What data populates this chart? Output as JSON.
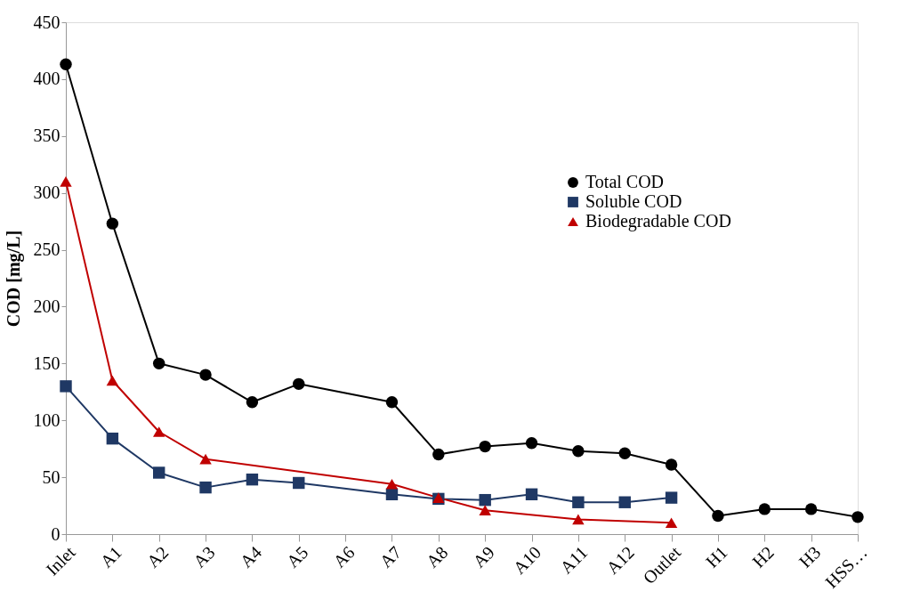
{
  "chart_data": {
    "type": "line",
    "ylabel": "COD [mg/L]",
    "categories": [
      "Inlet",
      "A1",
      "A2",
      "A3",
      "A4",
      "A5",
      "A6",
      "A7",
      "A8",
      "A9",
      "A10",
      "A11",
      "A12",
      "Outlet",
      "H1",
      "H2",
      "H3",
      "HSS…"
    ],
    "series": [
      {
        "name": "Total COD",
        "color": "#000000",
        "marker": "circle",
        "values": [
          413,
          273,
          150,
          140,
          116,
          132,
          null,
          116,
          70,
          77,
          80,
          73,
          71,
          61,
          16,
          22,
          22,
          15
        ]
      },
      {
        "name": "Soluble COD",
        "color": "#1f3864",
        "marker": "square",
        "values": [
          130,
          84,
          54,
          41,
          48,
          45,
          null,
          35,
          31,
          30,
          35,
          28,
          28,
          32,
          null,
          null,
          null,
          null
        ]
      },
      {
        "name": "Biodegradable COD",
        "color": "#c00000",
        "marker": "triangle",
        "values": [
          310,
          135,
          90,
          66,
          null,
          null,
          null,
          44,
          32,
          21,
          null,
          13,
          null,
          10,
          null,
          null,
          null,
          null
        ]
      }
    ],
    "ylim": [
      0,
      450
    ],
    "yticks": [
      0,
      50,
      100,
      150,
      200,
      250,
      300,
      350,
      400,
      450
    ],
    "grid": false,
    "legend": "right",
    "line_style": "solid"
  }
}
